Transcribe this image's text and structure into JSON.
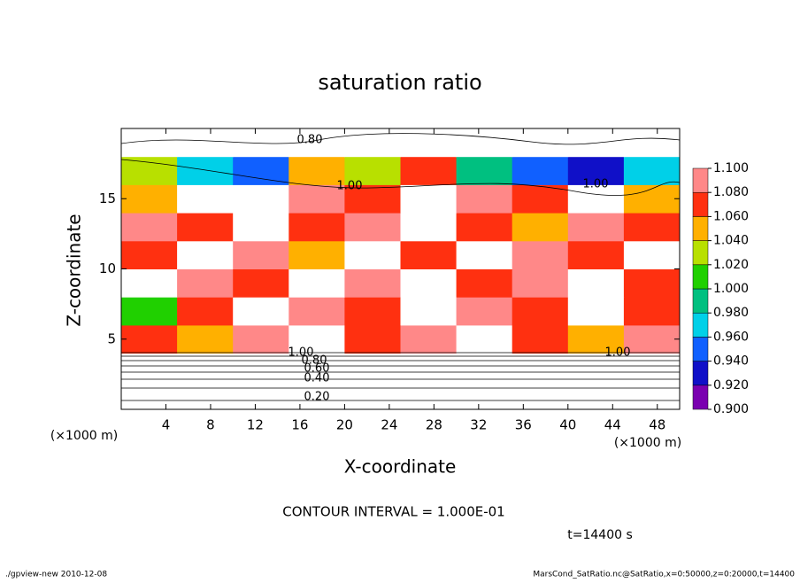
{
  "chart_data": {
    "type": "contour",
    "title": "saturation ratio",
    "x_label": "X-coordinate",
    "y_label": "Z-coordinate",
    "x_unit": "(×1000 m)",
    "y_unit": "(×1000 m)",
    "xlim": [
      0,
      50
    ],
    "ylim": [
      0,
      20
    ],
    "xticks": [
      4,
      8,
      12,
      16,
      20,
      24,
      28,
      32,
      36,
      40,
      44,
      48
    ],
    "yticks": [
      5,
      10,
      15
    ],
    "field": {
      "x": [
        2.5,
        7.5,
        12.5,
        17.5,
        22.5,
        27.5,
        32.5,
        37.5,
        42.5,
        47.5
      ],
      "z": [
        1,
        3,
        5,
        7,
        9,
        11,
        13,
        15,
        17,
        19
      ],
      "values": [
        [
          0.2,
          0.2,
          0.2,
          0.2,
          0.2,
          0.2,
          0.2,
          0.2,
          0.2,
          0.2
        ],
        [
          0.6,
          0.6,
          0.6,
          0.6,
          0.6,
          0.6,
          0.6,
          0.6,
          0.6,
          0.6
        ],
        [
          1.06,
          1.04,
          1.08,
          1.12,
          1.06,
          1.08,
          1.12,
          1.06,
          1.04,
          1.08
        ],
        [
          1.0,
          1.06,
          1.12,
          1.08,
          1.06,
          1.12,
          1.08,
          1.06,
          1.12,
          1.06
        ],
        [
          1.12,
          1.08,
          1.06,
          1.12,
          1.08,
          1.12,
          1.06,
          1.08,
          1.12,
          1.06
        ],
        [
          1.06,
          1.12,
          1.08,
          1.04,
          1.12,
          1.06,
          1.12,
          1.08,
          1.06,
          1.12
        ],
        [
          1.08,
          1.06,
          1.12,
          1.06,
          1.08,
          1.12,
          1.06,
          1.04,
          1.08,
          1.06
        ],
        [
          1.04,
          1.12,
          1.12,
          1.08,
          1.06,
          1.12,
          1.08,
          1.06,
          1.12,
          1.04
        ],
        [
          1.02,
          0.96,
          0.94,
          1.04,
          1.02,
          1.06,
          0.98,
          0.94,
          0.93,
          0.96
        ],
        [
          0.8,
          0.8,
          0.8,
          0.8,
          0.8,
          0.8,
          0.8,
          0.8,
          0.8,
          0.8
        ]
      ]
    },
    "colorbar": {
      "levels": [
        {
          "value": 0.9,
          "label": "0.900"
        },
        {
          "value": 0.92,
          "label": "0.920"
        },
        {
          "value": 0.94,
          "label": "0.940"
        },
        {
          "value": 0.96,
          "label": "0.960"
        },
        {
          "value": 0.98,
          "label": "0.980"
        },
        {
          "value": 1.0,
          "label": "1.000"
        },
        {
          "value": 1.02,
          "label": "1.020"
        },
        {
          "value": 1.04,
          "label": "1.040"
        },
        {
          "value": 1.06,
          "label": "1.060"
        },
        {
          "value": 1.08,
          "label": "1.080"
        },
        {
          "value": 1.1,
          "label": "1.100"
        }
      ],
      "colors": [
        "#7a00b0",
        "#1010c8",
        "#1060ff",
        "#00d0e8",
        "#00c080",
        "#20d000",
        "#b8e000",
        "#ffb000",
        "#ff3010",
        "#ff8888"
      ]
    },
    "contour_labels": [
      "0.80",
      "1.00",
      "1.00",
      "1.00",
      "0.80",
      "0.60",
      "0.40",
      "0.20",
      "1.00"
    ],
    "contour_interval": "CONTOUR INTERVAL = 1.000E-01",
    "time": "t=14400 s",
    "footer_left": "./gpview-new  2010-12-08",
    "footer_right": "MarsCond_SatRatio.nc@SatRatio,x=0:50000,z=0:20000,t=14400"
  }
}
